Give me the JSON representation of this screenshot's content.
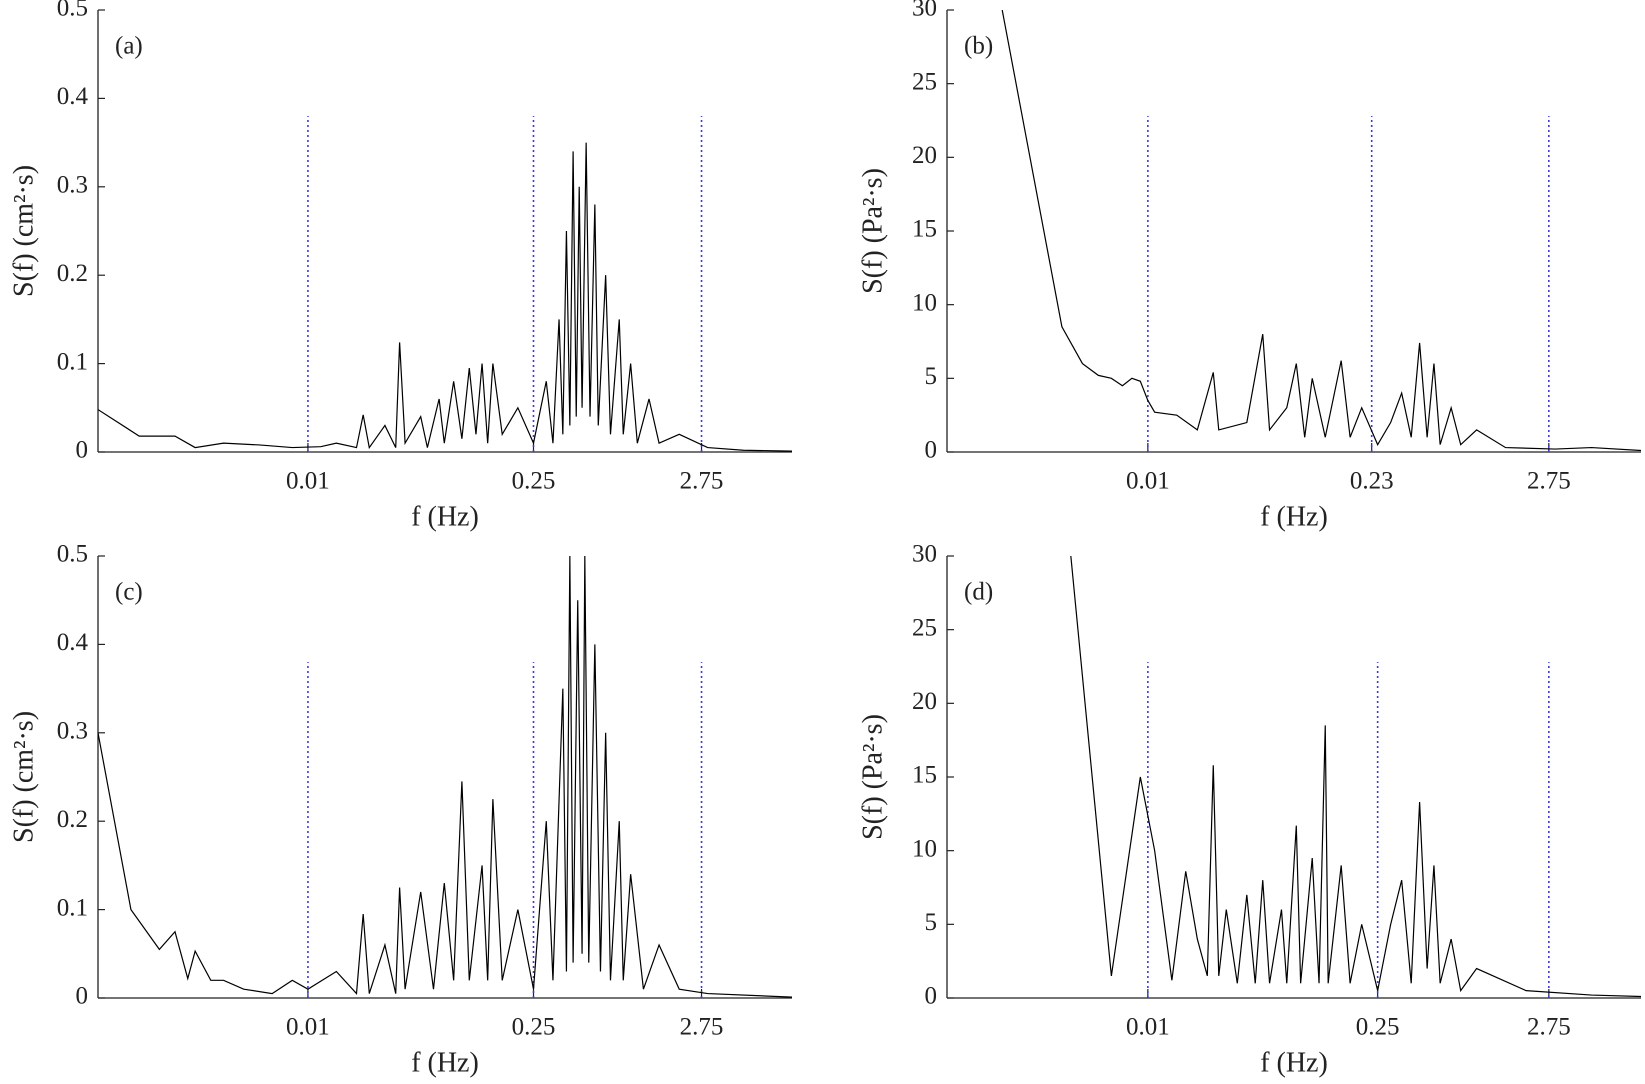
{
  "chart_data": [
    {
      "type": "line",
      "label": "(a)",
      "xlabel": "f (Hz)",
      "ylabel": "S(f) (cm²·s)",
      "log_x": true,
      "vline_color": "#3a3ae0",
      "x": [
        0.0005,
        0.0009,
        0.0015,
        0.002,
        0.003,
        0.005,
        0.008,
        0.012,
        0.015,
        0.02,
        0.022,
        0.024,
        0.03,
        0.035,
        0.037,
        0.04,
        0.05,
        0.055,
        0.065,
        0.07,
        0.08,
        0.09,
        0.1,
        0.11,
        0.12,
        0.13,
        0.14,
        0.16,
        0.2,
        0.25,
        0.3,
        0.33,
        0.36,
        0.38,
        0.4,
        0.42,
        0.44,
        0.46,
        0.48,
        0.5,
        0.53,
        0.56,
        0.6,
        0.63,
        0.7,
        0.75,
        0.85,
        0.9,
        1.0,
        1.1,
        1.3,
        1.5,
        2,
        3,
        5,
        10
      ],
      "series": [
        {
          "color": "#000000",
          "values": [
            0.048,
            0.018,
            0.018,
            0.005,
            0.01,
            0.008,
            0.005,
            0.006,
            0.01,
            0.005,
            0.042,
            0.005,
            0.03,
            0.005,
            0.124,
            0.01,
            0.04,
            0.005,
            0.06,
            0.01,
            0.08,
            0.015,
            0.095,
            0.02,
            0.1,
            0.01,
            0.1,
            0.02,
            0.05,
            0.01,
            0.08,
            0.01,
            0.15,
            0.02,
            0.25,
            0.03,
            0.34,
            0.04,
            0.3,
            0.05,
            0.35,
            0.04,
            0.28,
            0.03,
            0.2,
            0.02,
            0.15,
            0.02,
            0.1,
            0.01,
            0.06,
            0.01,
            0.02,
            0.005,
            0.002,
            0.001
          ]
        }
      ],
      "xlim": [
        0.0005,
        10
      ],
      "ylim": [
        0,
        0.5
      ],
      "xticks": [
        0.01,
        0.25,
        2.75
      ],
      "yticks": [
        0,
        0.1,
        0.2,
        0.3,
        0.4,
        0.5
      ]
    },
    {
      "type": "line",
      "label": "(b)",
      "xlabel": "f (Hz)",
      "ylabel": "S(f) (Pa²·s)",
      "log_x": true,
      "vline_color": "#3a3ae0",
      "x": [
        0.0013,
        0.003,
        0.004,
        0.005,
        0.006,
        0.007,
        0.008,
        0.009,
        0.01,
        0.011,
        0.015,
        0.02,
        0.025,
        0.027,
        0.04,
        0.05,
        0.055,
        0.07,
        0.08,
        0.09,
        0.1,
        0.12,
        0.15,
        0.17,
        0.2,
        0.25,
        0.3,
        0.35,
        0.4,
        0.45,
        0.5,
        0.55,
        0.6,
        0.7,
        0.8,
        1.0,
        1.5,
        3,
        5,
        10
      ],
      "series": [
        {
          "color": "#000000",
          "values": [
            30,
            8.5,
            6,
            5.2,
            5,
            4.5,
            5,
            4.8,
            3.5,
            2.7,
            2.5,
            1.5,
            5.4,
            1.5,
            2,
            8,
            1.5,
            3,
            6,
            1,
            5,
            1,
            6.2,
            1,
            3,
            0.5,
            2,
            4,
            1,
            7.4,
            1,
            6,
            0.5,
            3,
            0.5,
            1.5,
            0.3,
            0.2,
            0.3,
            0.1
          ]
        }
      ],
      "xlim": [
        0.0006,
        10
      ],
      "ylim": [
        0,
        30
      ],
      "xticks": [
        0.01,
        0.23,
        2.75
      ],
      "yticks": [
        0,
        5,
        10,
        15,
        20,
        25,
        30
      ]
    },
    {
      "type": "line",
      "label": "(c)",
      "xlabel": "f (Hz)",
      "ylabel": "S(f) (cm²·s)",
      "log_x": true,
      "vline_color": "#3a3ae0",
      "x": [
        0.0005,
        0.0008,
        0.0012,
        0.0015,
        0.0018,
        0.002,
        0.0025,
        0.003,
        0.004,
        0.006,
        0.008,
        0.01,
        0.015,
        0.02,
        0.022,
        0.024,
        0.03,
        0.035,
        0.037,
        0.04,
        0.05,
        0.06,
        0.07,
        0.08,
        0.09,
        0.1,
        0.12,
        0.13,
        0.14,
        0.16,
        0.2,
        0.25,
        0.3,
        0.33,
        0.38,
        0.4,
        0.42,
        0.44,
        0.47,
        0.5,
        0.52,
        0.55,
        0.6,
        0.65,
        0.7,
        0.75,
        0.85,
        0.9,
        1.0,
        1.2,
        1.5,
        2,
        3,
        10
      ],
      "series": [
        {
          "color": "#000000",
          "values": [
            0.3,
            0.1,
            0.055,
            0.075,
            0.022,
            0.053,
            0.02,
            0.02,
            0.01,
            0.005,
            0.02,
            0.01,
            0.03,
            0.005,
            0.095,
            0.005,
            0.06,
            0.005,
            0.125,
            0.01,
            0.12,
            0.01,
            0.13,
            0.02,
            0.245,
            0.02,
            0.15,
            0.02,
            0.225,
            0.02,
            0.1,
            0.01,
            0.2,
            0.02,
            0.35,
            0.03,
            0.5,
            0.04,
            0.45,
            0.05,
            0.5,
            0.04,
            0.4,
            0.03,
            0.3,
            0.02,
            0.2,
            0.02,
            0.14,
            0.01,
            0.06,
            0.01,
            0.005,
            0.001
          ]
        }
      ],
      "xlim": [
        0.0005,
        10
      ],
      "ylim": [
        0,
        0.5
      ],
      "xticks": [
        0.01,
        0.25,
        2.75
      ],
      "yticks": [
        0,
        0.1,
        0.2,
        0.3,
        0.4,
        0.5
      ]
    },
    {
      "type": "line",
      "label": "(d)",
      "xlabel": "f (Hz)",
      "ylabel": "S(f) (Pa²·s)",
      "log_x": true,
      "vline_color": "#3a3ae0",
      "x": [
        0.0034,
        0.006,
        0.009,
        0.011,
        0.014,
        0.017,
        0.02,
        0.023,
        0.025,
        0.027,
        0.03,
        0.035,
        0.04,
        0.045,
        0.05,
        0.055,
        0.065,
        0.07,
        0.08,
        0.085,
        0.1,
        0.11,
        0.12,
        0.125,
        0.15,
        0.17,
        0.2,
        0.25,
        0.3,
        0.35,
        0.4,
        0.45,
        0.5,
        0.55,
        0.6,
        0.7,
        0.8,
        1,
        2,
        5,
        10
      ],
      "series": [
        {
          "color": "#000000",
          "values": [
            30,
            1.5,
            15,
            10,
            1.2,
            8.6,
            4,
            1.5,
            15.8,
            1.5,
            6,
            1,
            7,
            1,
            8,
            1,
            6,
            1,
            11.7,
            1,
            9.5,
            1,
            18.5,
            1,
            9,
            1,
            5,
            0.5,
            5,
            8,
            1,
            13.3,
            2,
            9,
            1,
            4,
            0.5,
            2,
            0.5,
            0.2,
            0.1
          ]
        }
      ],
      "xlim": [
        0.0006,
        10
      ],
      "ylim": [
        0,
        30
      ],
      "xticks": [
        0.01,
        0.25,
        2.75
      ],
      "yticks": [
        0,
        5,
        10,
        15,
        20,
        25,
        30
      ]
    }
  ]
}
